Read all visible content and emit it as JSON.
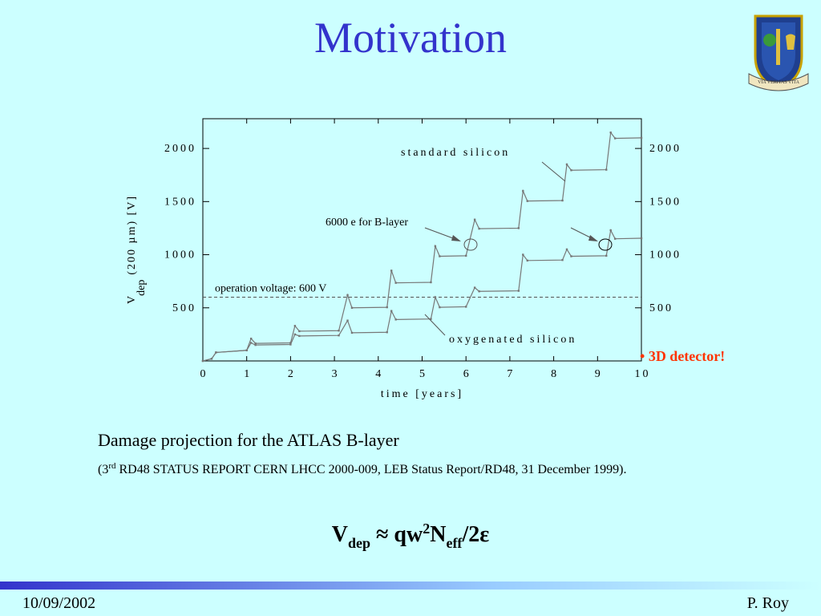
{
  "slide": {
    "title": "Motivation",
    "logo_motto": "VIA VERITAS VITA",
    "caption": "Damage projection for the ATLAS B-layer",
    "reference": [
      "(3",
      "rd",
      " RD48 STATUS REPORT CERN LHCC 2000-009, LEB Status Report/RD48, 31 December 1999)."
    ],
    "formula": [
      "V",
      "dep",
      " ≈ qw",
      "2",
      "N",
      "eff",
      "/2ε"
    ],
    "note": "3D detector!",
    "date": "10/09/2002",
    "author": "P. Roy"
  },
  "chart_data": {
    "type": "line",
    "xlabel": "time [years]",
    "ylabel": [
      "V",
      "dep",
      "(200 µm) [V]"
    ],
    "x": [
      0,
      0.2,
      0.3,
      1.0,
      1.1,
      1.2,
      2.0,
      2.1,
      2.2,
      3.1,
      3.3,
      3.4,
      4.2,
      4.3,
      4.4,
      5.2,
      5.3,
      5.4,
      6.0,
      6.2,
      6.3,
      7.2,
      7.3,
      7.4,
      8.2,
      8.3,
      8.4,
      9.2,
      9.3,
      9.4,
      10
    ],
    "series": [
      {
        "name": "standard silicon",
        "color": "#777777",
        "values": [
          0,
          20,
          80,
          100,
          210,
          165,
          170,
          330,
          280,
          285,
          620,
          500,
          505,
          850,
          735,
          740,
          1080,
          985,
          990,
          1330,
          1245,
          1250,
          1600,
          1505,
          1510,
          1850,
          1795,
          1800,
          2150,
          2095,
          2100
        ]
      },
      {
        "name": "oxygenated silicon",
        "color": "#777777",
        "values": [
          0,
          20,
          80,
          100,
          170,
          150,
          155,
          250,
          235,
          240,
          380,
          265,
          270,
          470,
          390,
          395,
          600,
          505,
          510,
          690,
          655,
          660,
          1000,
          945,
          950,
          1050,
          985,
          990,
          1230,
          1150,
          1155
        ]
      }
    ],
    "threshold": 600,
    "threshold_label": "operation voltage: 600 V",
    "annotation": "6000 e for B-layer",
    "xlim": [
      0,
      10
    ],
    "xticks": [
      0,
      1,
      2,
      3,
      4,
      5,
      6,
      7,
      8,
      9,
      10
    ],
    "ylim": [
      0,
      2280
    ],
    "yticks": [
      500,
      1000,
      1500,
      2000
    ],
    "y2lim": [
      0,
      2280
    ],
    "y2ticks": [
      500,
      1000,
      1500,
      2000
    ]
  }
}
